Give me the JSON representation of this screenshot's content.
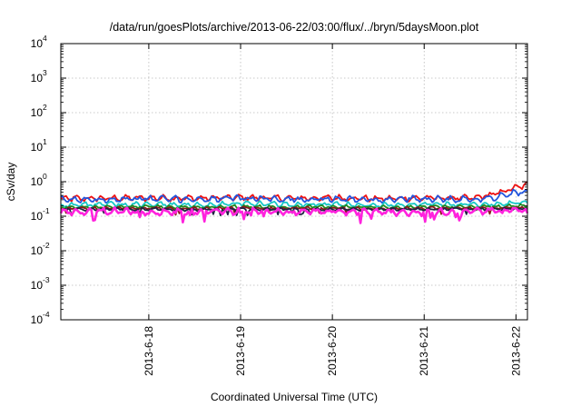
{
  "chart_data": {
    "type": "line",
    "title": "/data/run/goesPlots/archive/2013-06-22/03:00/flux/../bryn/5daysMoon.plot",
    "xlabel": "Coordinated Universal Time (UTC)",
    "ylabel": "cSv/day",
    "yscale": "log",
    "ylim": [
      0.0001,
      10000
    ],
    "xlim": [
      "2013-06-17 01:00",
      "2013-06-22 03:00"
    ],
    "grid": true,
    "legend": "none",
    "y_ticks": [
      {
        "base": "10",
        "exp": "-4",
        "value": 0.0001
      },
      {
        "base": "10",
        "exp": "-3",
        "value": 0.001
      },
      {
        "base": "10",
        "exp": "-2",
        "value": 0.01
      },
      {
        "base": "10",
        "exp": "-1",
        "value": 0.1
      },
      {
        "base": "10",
        "exp": "0",
        "value": 1
      },
      {
        "base": "10",
        "exp": "1",
        "value": 10
      },
      {
        "base": "10",
        "exp": "2",
        "value": 100
      },
      {
        "base": "10",
        "exp": "3",
        "value": 1000
      },
      {
        "base": "10",
        "exp": "4",
        "value": 10000
      }
    ],
    "x_ticks": [
      {
        "label": "2013-6-18",
        "value": "2013-06-18 00:00"
      },
      {
        "label": "2013-6-19",
        "value": "2013-06-19 00:00"
      },
      {
        "label": "2013-6-20",
        "value": "2013-06-20 00:00"
      },
      {
        "label": "2013-6-21",
        "value": "2013-06-21 00:00"
      },
      {
        "label": "2013-6-22",
        "value": "2013-06-22 00:00"
      }
    ],
    "x": [
      "2013-06-17 01:00",
      "2013-06-17 13:00",
      "2013-06-18 01:00",
      "2013-06-18 13:00",
      "2013-06-19 01:00",
      "2013-06-19 13:00",
      "2013-06-20 01:00",
      "2013-06-20 13:00",
      "2013-06-21 01:00",
      "2013-06-21 13:00",
      "2013-06-21 19:00",
      "2013-06-22 03:00"
    ],
    "series": [
      {
        "color": "#ee1111",
        "values": [
          0.32,
          0.33,
          0.34,
          0.33,
          0.35,
          0.33,
          0.34,
          0.32,
          0.34,
          0.33,
          0.45,
          0.8
        ]
      },
      {
        "color": "#2255dd",
        "values": [
          0.3,
          0.31,
          0.32,
          0.31,
          0.33,
          0.31,
          0.32,
          0.3,
          0.32,
          0.31,
          0.36,
          0.55
        ]
      },
      {
        "color": "#17c7c7",
        "values": [
          0.21,
          0.22,
          0.22,
          0.21,
          0.23,
          0.22,
          0.22,
          0.21,
          0.22,
          0.22,
          0.23,
          0.26
        ]
      },
      {
        "color": "#1f8a1f",
        "values": [
          0.18,
          0.185,
          0.19,
          0.18,
          0.19,
          0.185,
          0.19,
          0.18,
          0.19,
          0.185,
          0.19,
          0.2
        ]
      },
      {
        "color": "#8a1a1a",
        "values": [
          0.165,
          0.17,
          0.17,
          0.165,
          0.17,
          0.17,
          0.17,
          0.165,
          0.17,
          0.17,
          0.17,
          0.175
        ]
      },
      {
        "color": "#222244",
        "values": [
          0.155,
          0.16,
          0.16,
          0.155,
          0.16,
          0.16,
          0.16,
          0.155,
          0.16,
          0.16,
          0.16,
          0.165
        ]
      },
      {
        "color": "#ff22dd",
        "values": [
          0.13,
          0.14,
          0.13,
          0.13,
          0.14,
          0.13,
          0.14,
          0.13,
          0.13,
          0.14,
          0.14,
          0.15
        ]
      }
    ]
  }
}
